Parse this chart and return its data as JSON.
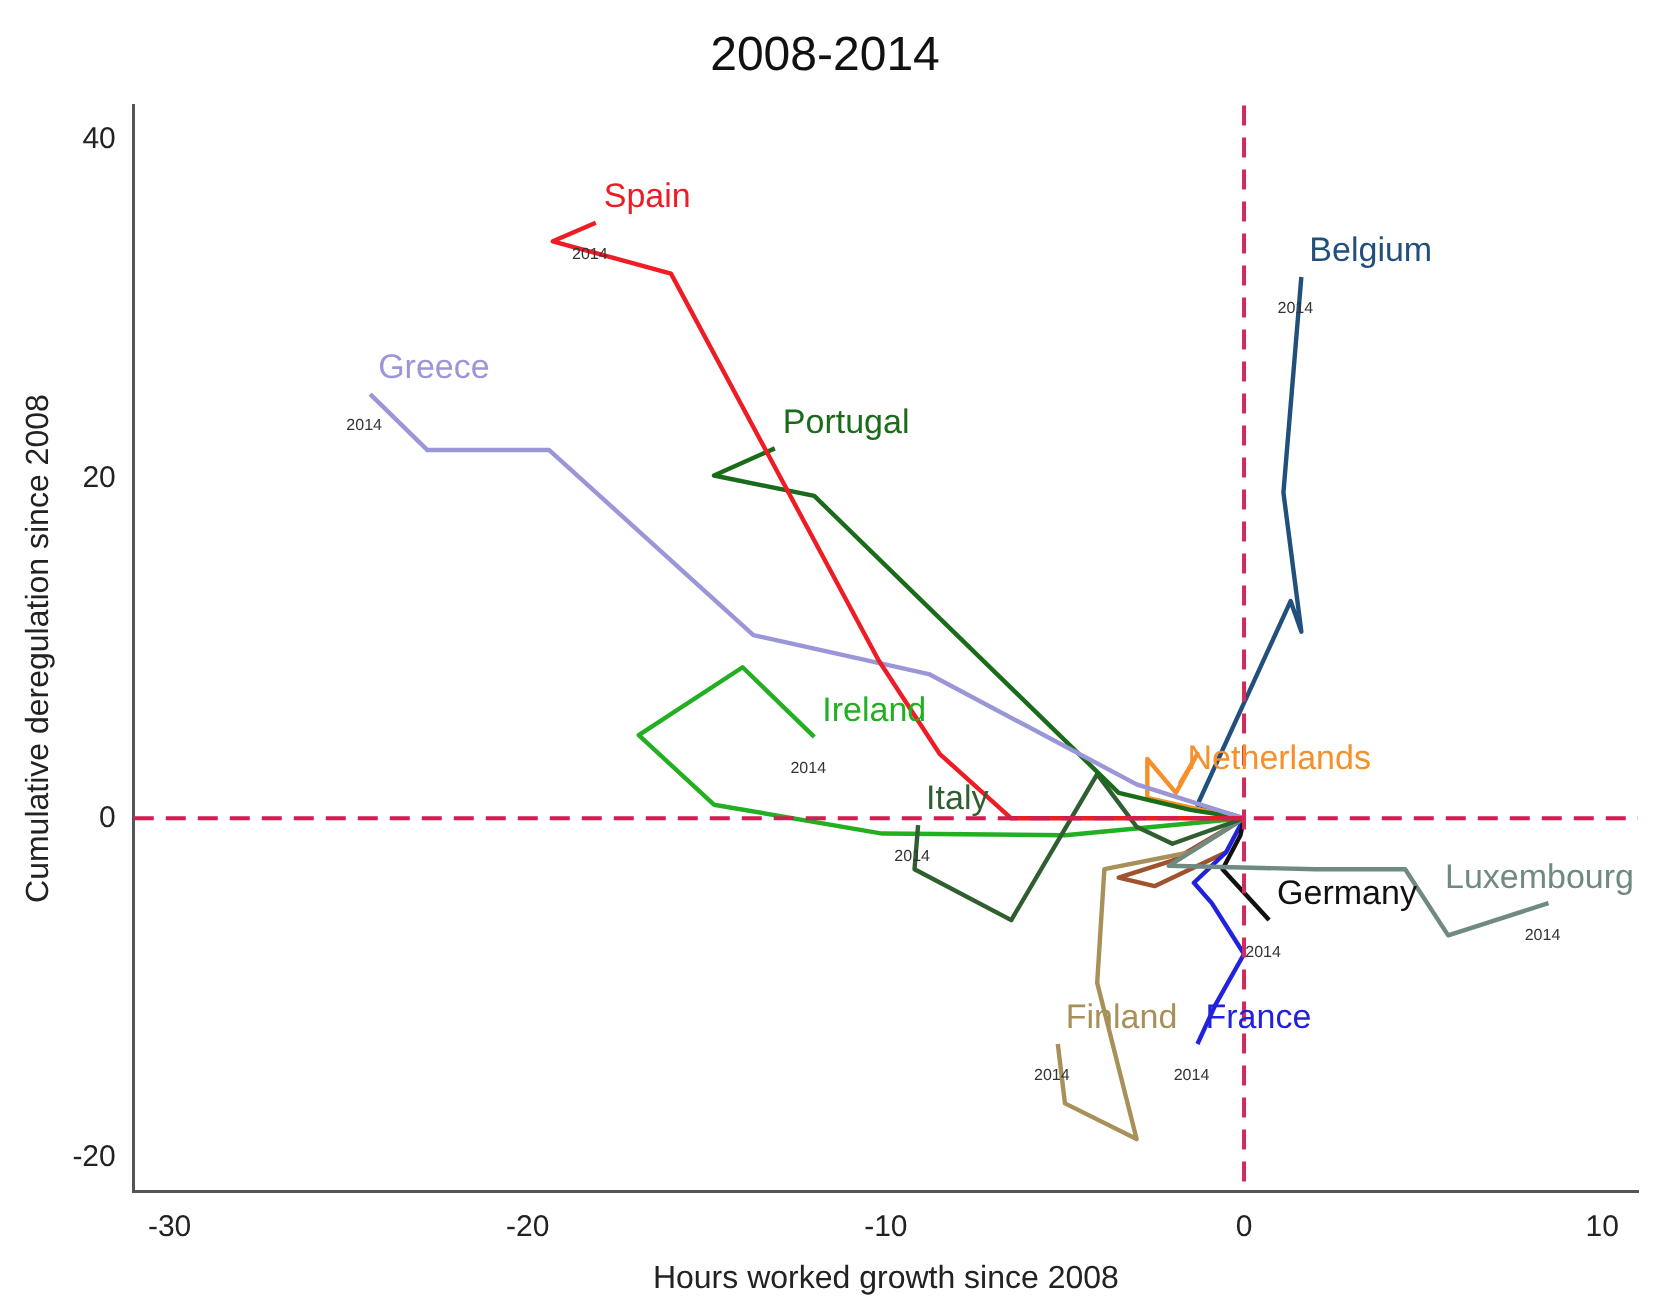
{
  "chart_data": {
    "type": "line",
    "title": "2008-2014",
    "xlabel": "Hours worked growth since 2008",
    "ylabel": "Cumulative deregulation since 2008",
    "xlim": [
      -31,
      11
    ],
    "xticks": [
      -30,
      -20,
      -10,
      0,
      10
    ],
    "ylim": [
      -22,
      42
    ],
    "yticks": [
      -20,
      0,
      20,
      40
    ],
    "grid": false,
    "legend": false,
    "marker": "none",
    "line_style": "solid",
    "series": [
      {
        "name": "Spain",
        "color": "#ee1c25",
        "x": [
          0,
          -6.5,
          -8.5,
          -10.2,
          -16,
          -19.3,
          -18.1
        ],
        "values": [
          0,
          0,
          3.8,
          9.3,
          32.1,
          34,
          35.1
        ]
      },
      {
        "name": "Greece",
        "color": "#9b96d8",
        "x": [
          0,
          -3,
          -8.8,
          -13.7,
          -19.4,
          -22.8,
          -24.4
        ],
        "values": [
          0,
          2,
          8.5,
          10.8,
          21.7,
          21.7,
          25
        ]
      },
      {
        "name": "Portugal",
        "color": "#1a6b1a",
        "x": [
          0,
          -1.5,
          -3.5,
          -12,
          -14.8,
          -13.1
        ],
        "values": [
          0,
          0.5,
          1.5,
          19,
          20.2,
          21.8
        ]
      },
      {
        "name": "Italy",
        "color": "#2f5f2f",
        "x": [
          0,
          -2,
          -3,
          -4.1,
          -6.5,
          -9.2,
          -9.1
        ],
        "values": [
          0,
          -1.5,
          -0.5,
          2.6,
          -6,
          -3,
          -0.4
        ]
      },
      {
        "name": "Ireland",
        "color": "#22b022",
        "x": [
          0,
          -5,
          -10.1,
          -14.8,
          -16.9,
          -14,
          -12
        ],
        "values": [
          0,
          -1,
          -0.9,
          0.8,
          4.9,
          8.9,
          4.8
        ]
      },
      {
        "name": "Netherlands",
        "color": "#f5902a",
        "x": [
          0,
          -1.2,
          -2.7,
          -2.7,
          -1.9,
          -1.3,
          -1.8
        ],
        "values": [
          0,
          0.5,
          1.2,
          3.5,
          1.5,
          3.8,
          2
        ]
      },
      {
        "name": "Belgium",
        "color": "#22507d",
        "x": [
          0,
          -1.3,
          1.3,
          1.6,
          1.1,
          1.6
        ],
        "values": [
          0,
          0.8,
          12.8,
          11,
          19.2,
          31.9
        ]
      },
      {
        "name": "Luxembourg",
        "color": "#6e8a82",
        "x": [
          0,
          -2.1,
          2,
          4.5,
          5.7,
          8.5
        ],
        "values": [
          0,
          -2.8,
          -3,
          -3,
          -6.9,
          -5
        ]
      },
      {
        "name": "Germany",
        "color": "#111111",
        "x": [
          0,
          -0.1,
          -0.6,
          0.7
        ],
        "values": [
          0,
          -1,
          -3,
          -6
        ]
      },
      {
        "name": "France",
        "color": "#2222dd",
        "x": [
          0,
          -0.5,
          -1.4,
          -0.9,
          0,
          -0.8,
          -1.3
        ],
        "values": [
          0,
          -2,
          -3.8,
          -5,
          -8,
          -11,
          -13.3
        ]
      },
      {
        "name": "Finland",
        "color": "#a8905a",
        "x": [
          0,
          -1.5,
          -3.9,
          -4.1,
          -3,
          -5,
          -5.2
        ],
        "values": [
          0,
          -2,
          -3,
          -9.7,
          -18.9,
          -16.8,
          -13.3
        ]
      },
      {
        "color": "#a0522d",
        "x": [
          0,
          -2,
          -3.5,
          -2.5,
          -0.5
        ],
        "values": [
          0,
          -2.5,
          -3.5,
          -4,
          -2
        ]
      }
    ],
    "ref_lines": [
      {
        "axis": "x",
        "value": 0,
        "color": "#d42a5a",
        "line_style": "dashed"
      },
      {
        "axis": "y",
        "value": 0,
        "color": "#d01e50",
        "line_style": "dashed"
      }
    ],
    "annotations": [
      {
        "text": "2014",
        "x": -18.1,
        "y": 35.1
      },
      {
        "text": "2014",
        "x": -24.4,
        "y": 25
      },
      {
        "text": "2014",
        "x": -12,
        "y": 4.8
      },
      {
        "text": "2014",
        "x": -9.1,
        "y": -0.4
      },
      {
        "text": "2014",
        "x": 1.6,
        "y": 31.9
      },
      {
        "text": "2014",
        "x": 8.5,
        "y": -5
      },
      {
        "text": "2014",
        "x": 0.7,
        "y": -6
      },
      {
        "text": "2014",
        "x": -1.3,
        "y": -13.3
      },
      {
        "text": "2014",
        "x": -5.2,
        "y": -13.3
      }
    ]
  }
}
